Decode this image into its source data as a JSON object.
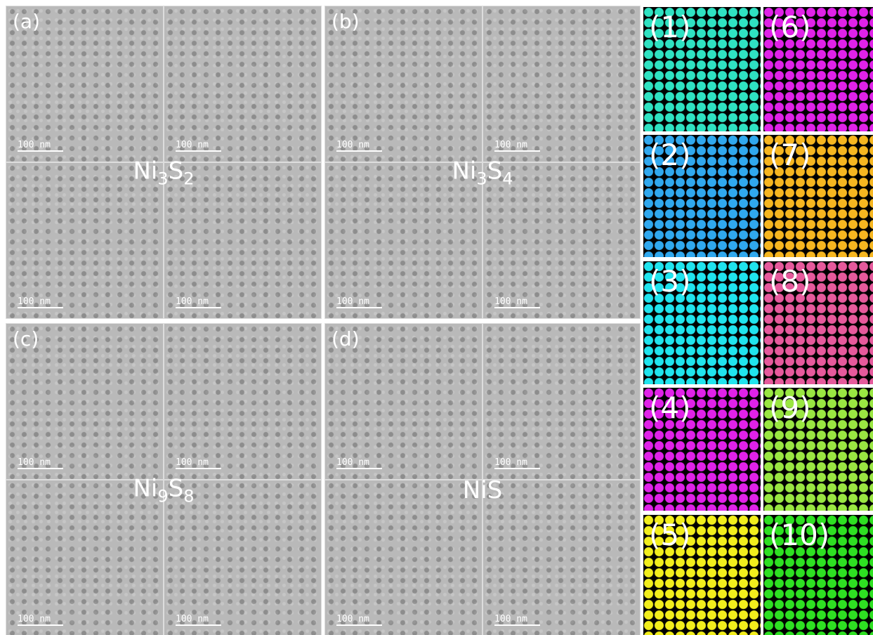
{
  "panels": [
    {
      "label": "(a)",
      "formula": [
        "Ni",
        "3",
        "S",
        "2"
      ],
      "scale_bars": [
        "100 nm",
        "100 nm",
        "100 nm",
        "100 nm"
      ]
    },
    {
      "label": "(b)",
      "formula": [
        "Ni",
        "3",
        "S",
        "4"
      ],
      "scale_bars": [
        "100 nm",
        "100 nm",
        "100 nm",
        "100 nm"
      ]
    },
    {
      "label": "(c)",
      "formula": [
        "Ni",
        "9",
        "S",
        "8"
      ],
      "scale_bars": [
        "100 nm",
        "100 nm",
        "100 nm",
        "100 nm"
      ]
    },
    {
      "label": "(d)",
      "formula": [
        "NiS"
      ],
      "scale_bars": [
        "100 nm",
        "100 nm",
        "100 nm",
        "100 nm"
      ]
    }
  ],
  "tiles": [
    {
      "label": "(1)",
      "color": "#2fe2c2"
    },
    {
      "label": "(2)",
      "color": "#30a8ee"
    },
    {
      "label": "(3)",
      "color": "#20e4ee"
    },
    {
      "label": "(4)",
      "color": "#e022e8"
    },
    {
      "label": "(5)",
      "color": "#f2ee1c"
    },
    {
      "label": "(6)",
      "color": "#e022e8"
    },
    {
      "label": "(7)",
      "color": "#f6b620"
    },
    {
      "label": "(8)",
      "color": "#e65a9c"
    },
    {
      "label": "(9)",
      "color": "#9ae642"
    },
    {
      "label": "(10)",
      "color": "#2ee022"
    }
  ]
}
